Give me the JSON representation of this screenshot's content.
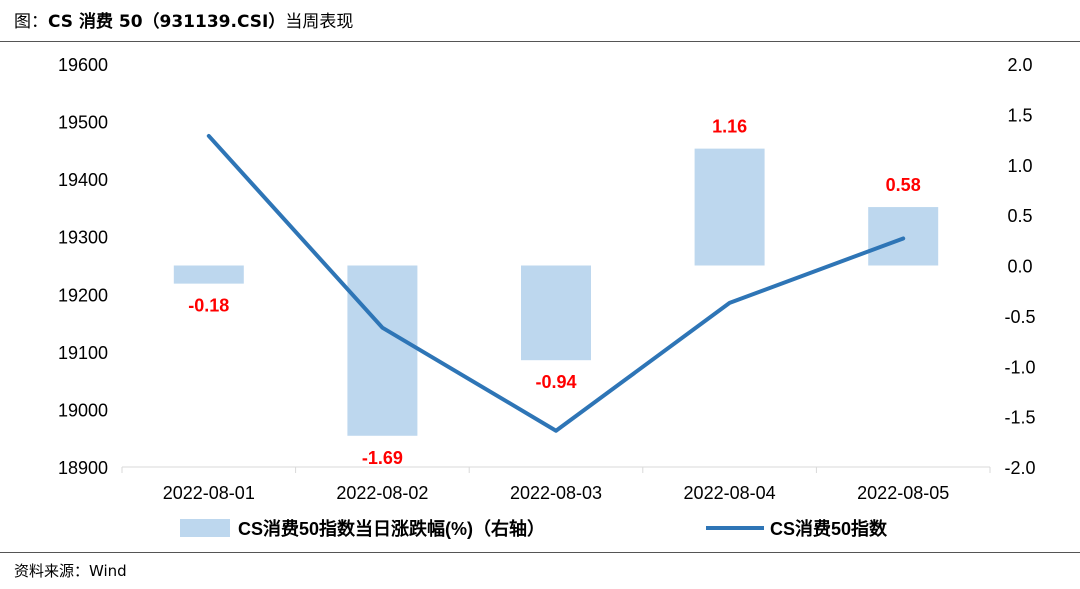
{
  "header": {
    "title_prefix": "图：",
    "title_main": "CS 消费 50（931139.CSI）",
    "title_suffix": "当周表现"
  },
  "footer": {
    "source": "资料来源：Wind"
  },
  "chart_data": {
    "type": "bar+line",
    "categories": [
      "2022-08-01",
      "2022-08-02",
      "2022-08-03",
      "2022-08-04",
      "2022-08-05"
    ],
    "series": [
      {
        "name": "CS消费50指数当日涨跌幅(%)（右轴）",
        "kind": "bar",
        "axis": "right",
        "values": [
          -0.18,
          -1.69,
          -0.94,
          1.16,
          0.58
        ],
        "labels": [
          "-0.18",
          "-1.69",
          "-0.94",
          "1.16",
          "0.58"
        ],
        "color": "#bdd7ee",
        "label_color": "#ff0000"
      },
      {
        "name": "CS消费50指数",
        "kind": "line",
        "axis": "left",
        "values": [
          19475,
          19142,
          18963,
          19185,
          19297
        ],
        "color": "#2e75b6"
      }
    ],
    "left_axis": {
      "ylim": [
        18900,
        19600
      ],
      "ticks": [
        "19600",
        "19500",
        "19400",
        "19300",
        "19200",
        "19100",
        "19000",
        "18900"
      ],
      "tick_values": [
        19600,
        19500,
        19400,
        19300,
        19200,
        19100,
        19000,
        18900
      ]
    },
    "right_axis": {
      "ylim": [
        -2.0,
        2.0
      ],
      "ticks": [
        "2.0",
        "1.5",
        "1.0",
        "0.5",
        "0.0",
        "-0.5",
        "-1.0",
        "-1.5",
        "-2.0"
      ],
      "tick_values": [
        2.0,
        1.5,
        1.0,
        0.5,
        0.0,
        -0.5,
        -1.0,
        -1.5,
        -2.0
      ]
    },
    "grid": false,
    "legend_position": "bottom"
  }
}
